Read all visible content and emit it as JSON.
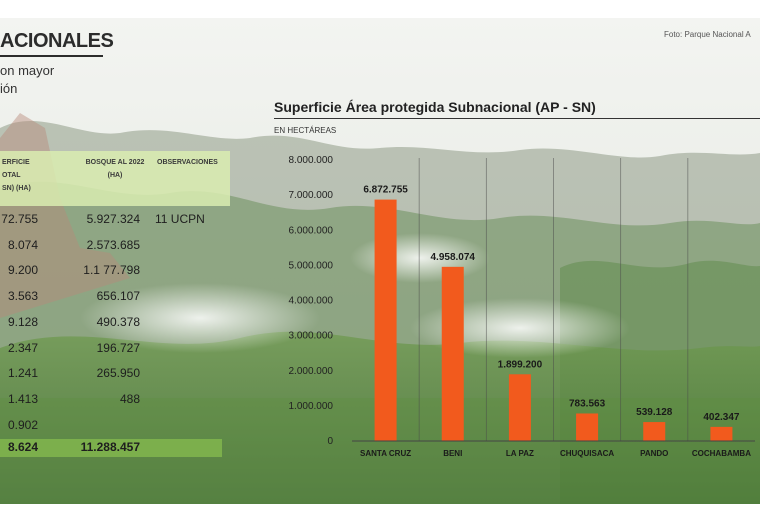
{
  "header": {
    "headline": "ACIONALES",
    "sub_line_1": "on mayor",
    "sub_line_2": "ión",
    "photo_credit": "Foto: Parque Nacional A"
  },
  "colors": {
    "bar": "#f25a1d",
    "table_header_bg": "#d9ecb0",
    "total_row_bg": "#7fb44c",
    "forest_dark": "#2f5c27",
    "forest_light": "#7da957",
    "sky": "#eef1ee"
  },
  "table": {
    "columns": [
      "ERFICIE\nOTAL\nSN) (HA)",
      "BOSQUE AL 2022\n(HA)",
      "OBSERVACIONES"
    ],
    "rows": [
      {
        "superficie": "72.755",
        "bosque": "5.927.324",
        "obs": "11 UCPN"
      },
      {
        "superficie": "8.074",
        "bosque": "2.573.685",
        "obs": ""
      },
      {
        "superficie": "9.200",
        "bosque": "1.1 77.798",
        "obs": ""
      },
      {
        "superficie": "3.563",
        "bosque": "656.107",
        "obs": ""
      },
      {
        "superficie": "9.128",
        "bosque": "490.378",
        "obs": ""
      },
      {
        "superficie": "2.347",
        "bosque": "196.727",
        "obs": ""
      },
      {
        "superficie": "1.241",
        "bosque": "265.950",
        "obs": ""
      },
      {
        "superficie": "1.413",
        "bosque": "488",
        "obs": ""
      },
      {
        "superficie": "0.902",
        "bosque": "",
        "obs": ""
      }
    ],
    "total": {
      "superficie": "8.624",
      "bosque": "11.288.457"
    }
  },
  "chart_data": {
    "type": "bar",
    "title": "Superficie Área protegida Subnacional (AP - SN)",
    "unit_label": "EN HECTÁREAS",
    "categories": [
      "SANTA CRUZ",
      "BENI",
      "LA PAZ",
      "CHUQUISACA",
      "PANDO",
      "COCHABAMBA"
    ],
    "values": [
      6872755,
      4958074,
      1899200,
      783563,
      539128,
      402347
    ],
    "value_labels": [
      "6.872.755",
      "4.958.074",
      "1.899.200",
      "783.563",
      "539.128",
      "402.347"
    ],
    "ylim": [
      0,
      8000000
    ],
    "yticks": [
      0,
      1000000,
      2000000,
      3000000,
      4000000,
      5000000,
      6000000,
      7000000,
      8000000
    ],
    "ytick_labels": [
      "0",
      "1.000.000",
      "2.000.000",
      "3.000.000",
      "4.000.000",
      "5.000.000",
      "6.000.000",
      "7.000.000",
      "8.000.000"
    ],
    "grid": "vertical separators"
  }
}
